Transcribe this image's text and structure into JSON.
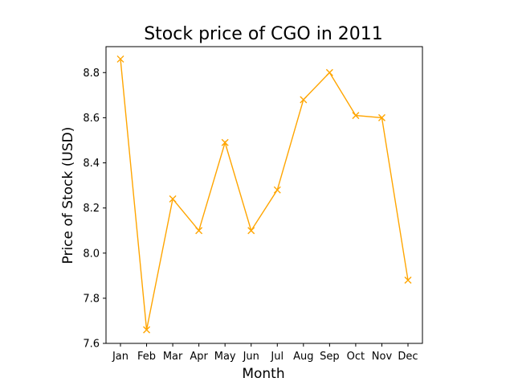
{
  "chart_data": {
    "type": "line",
    "title": "Stock price of CGO in 2011",
    "xlabel": "Month",
    "ylabel": "Price of Stock (USD)",
    "categories": [
      "Jan",
      "Feb",
      "Mar",
      "Apr",
      "May",
      "Jun",
      "Jul",
      "Aug",
      "Sep",
      "Oct",
      "Nov",
      "Dec"
    ],
    "series": [
      {
        "values": [
          8.86,
          7.66,
          8.24,
          8.1,
          8.49,
          8.1,
          8.28,
          8.68,
          8.8,
          8.61,
          8.6,
          7.88
        ],
        "color": "#FFA500",
        "marker": "x"
      }
    ],
    "ylim": [
      7.6,
      8.915
    ],
    "yticks": [
      "7.6",
      "7.8",
      "8.0",
      "8.2",
      "8.4",
      "8.6",
      "8.8"
    ],
    "grid": false
  }
}
